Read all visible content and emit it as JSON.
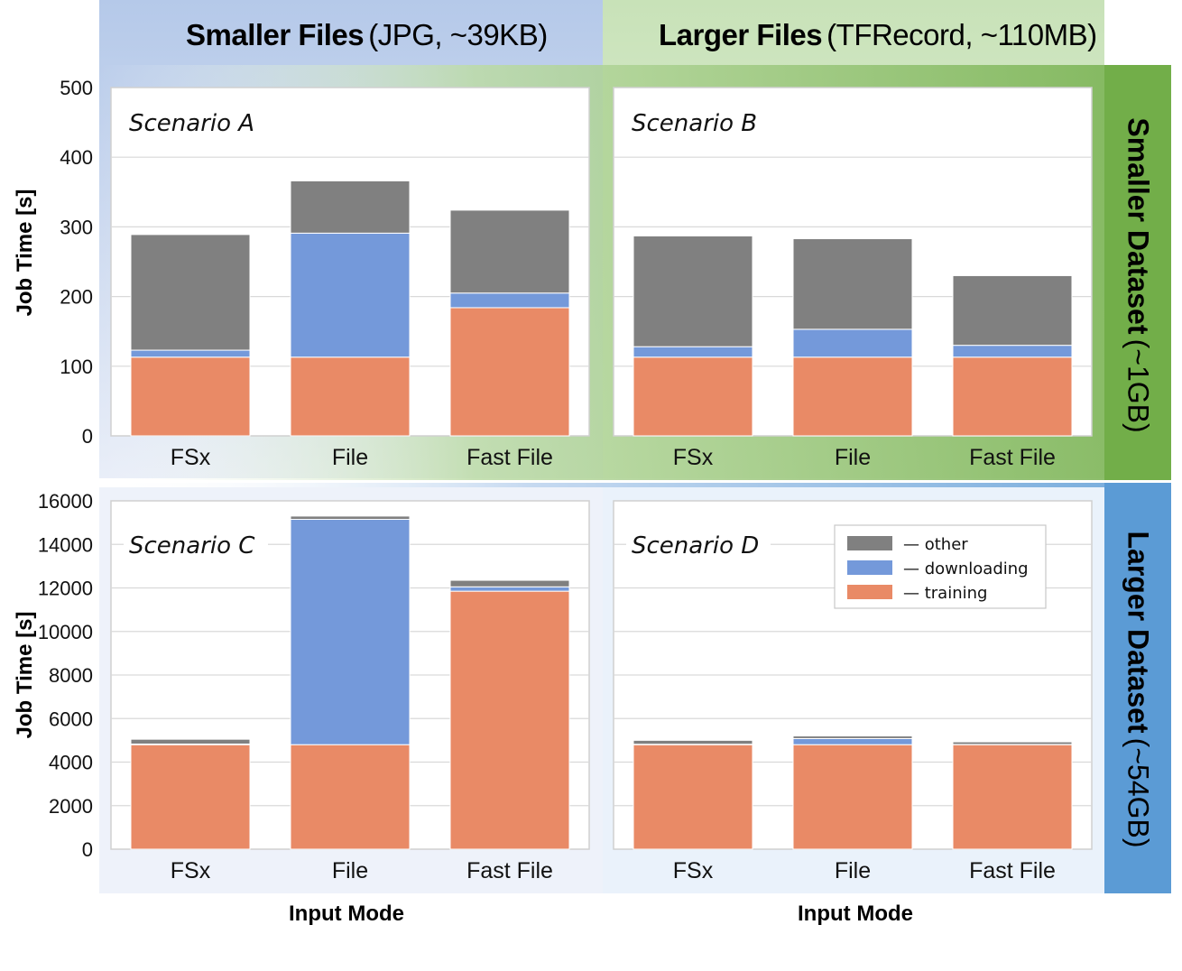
{
  "header": {
    "col1_bold": "Smaller Files",
    "col1_note": "(JPG, ~39KB)",
    "col2_bold": "Larger Files",
    "col2_note": "(TFRecord, ~110MB)",
    "row1_bold": "Smaller Dataset",
    "row1_note": "(~1GB)",
    "row2_bold": "Larger Dataset",
    "row2_note": "(~54GB)"
  },
  "axes": {
    "ylabel": "Job Time [s]",
    "xlabel": "Input Mode"
  },
  "colors": {
    "other": "#808080",
    "downloading": "#7499da",
    "training": "#e98a66",
    "blue_band": "#b4c8e8",
    "green_band": "#c7e1b7",
    "green_side": "#72ae49",
    "blue_side": "#5b9bd5"
  },
  "legend": [
    "other",
    "downloading",
    "training"
  ],
  "legend_dash": "—",
  "chart_data": [
    {
      "type": "bar",
      "stacked": true,
      "title": "Scenario A",
      "categories": [
        "FSx",
        "File",
        "Fast File"
      ],
      "series": [
        {
          "name": "training",
          "values": [
            113,
            113,
            184
          ]
        },
        {
          "name": "downloading",
          "values": [
            10,
            178,
            21
          ]
        },
        {
          "name": "other",
          "values": [
            166,
            75,
            119
          ]
        }
      ],
      "ylim": [
        0,
        500
      ],
      "yticks": [
        "0",
        "100",
        "200",
        "300",
        "400",
        "500"
      ],
      "ylabel": "Job Time [s]",
      "xlabel": ""
    },
    {
      "type": "bar",
      "stacked": true,
      "title": "Scenario B",
      "categories": [
        "FSx",
        "File",
        "Fast File"
      ],
      "series": [
        {
          "name": "training",
          "values": [
            113,
            113,
            113
          ]
        },
        {
          "name": "downloading",
          "values": [
            15,
            40,
            17
          ]
        },
        {
          "name": "other",
          "values": [
            159,
            130,
            100
          ]
        }
      ],
      "ylim": [
        0,
        500
      ],
      "yticks": [],
      "ylabel": "",
      "xlabel": ""
    },
    {
      "type": "bar",
      "stacked": true,
      "title": "Scenario C",
      "categories": [
        "FSx",
        "File",
        "Fast File"
      ],
      "series": [
        {
          "name": "training",
          "values": [
            4800,
            4800,
            11850
          ]
        },
        {
          "name": "downloading",
          "values": [
            30,
            10350,
            200
          ]
        },
        {
          "name": "other",
          "values": [
            220,
            150,
            300
          ]
        }
      ],
      "ylim": [
        0,
        16000
      ],
      "yticks": [
        "0",
        "2000",
        "4000",
        "6000",
        "8000",
        "10000",
        "12000",
        "14000",
        "16000"
      ],
      "ylabel": "Job Time [s]",
      "xlabel": "Input Mode"
    },
    {
      "type": "bar",
      "stacked": true,
      "title": "Scenario D",
      "categories": [
        "FSx",
        "File",
        "Fast File"
      ],
      "series": [
        {
          "name": "training",
          "values": [
            4800,
            4800,
            4800
          ]
        },
        {
          "name": "downloading",
          "values": [
            20,
            280,
            10
          ]
        },
        {
          "name": "other",
          "values": [
            180,
            120,
            120
          ]
        }
      ],
      "ylim": [
        0,
        16000
      ],
      "yticks": [],
      "ylabel": "",
      "xlabel": "Input Mode",
      "legend": "top-right"
    }
  ]
}
